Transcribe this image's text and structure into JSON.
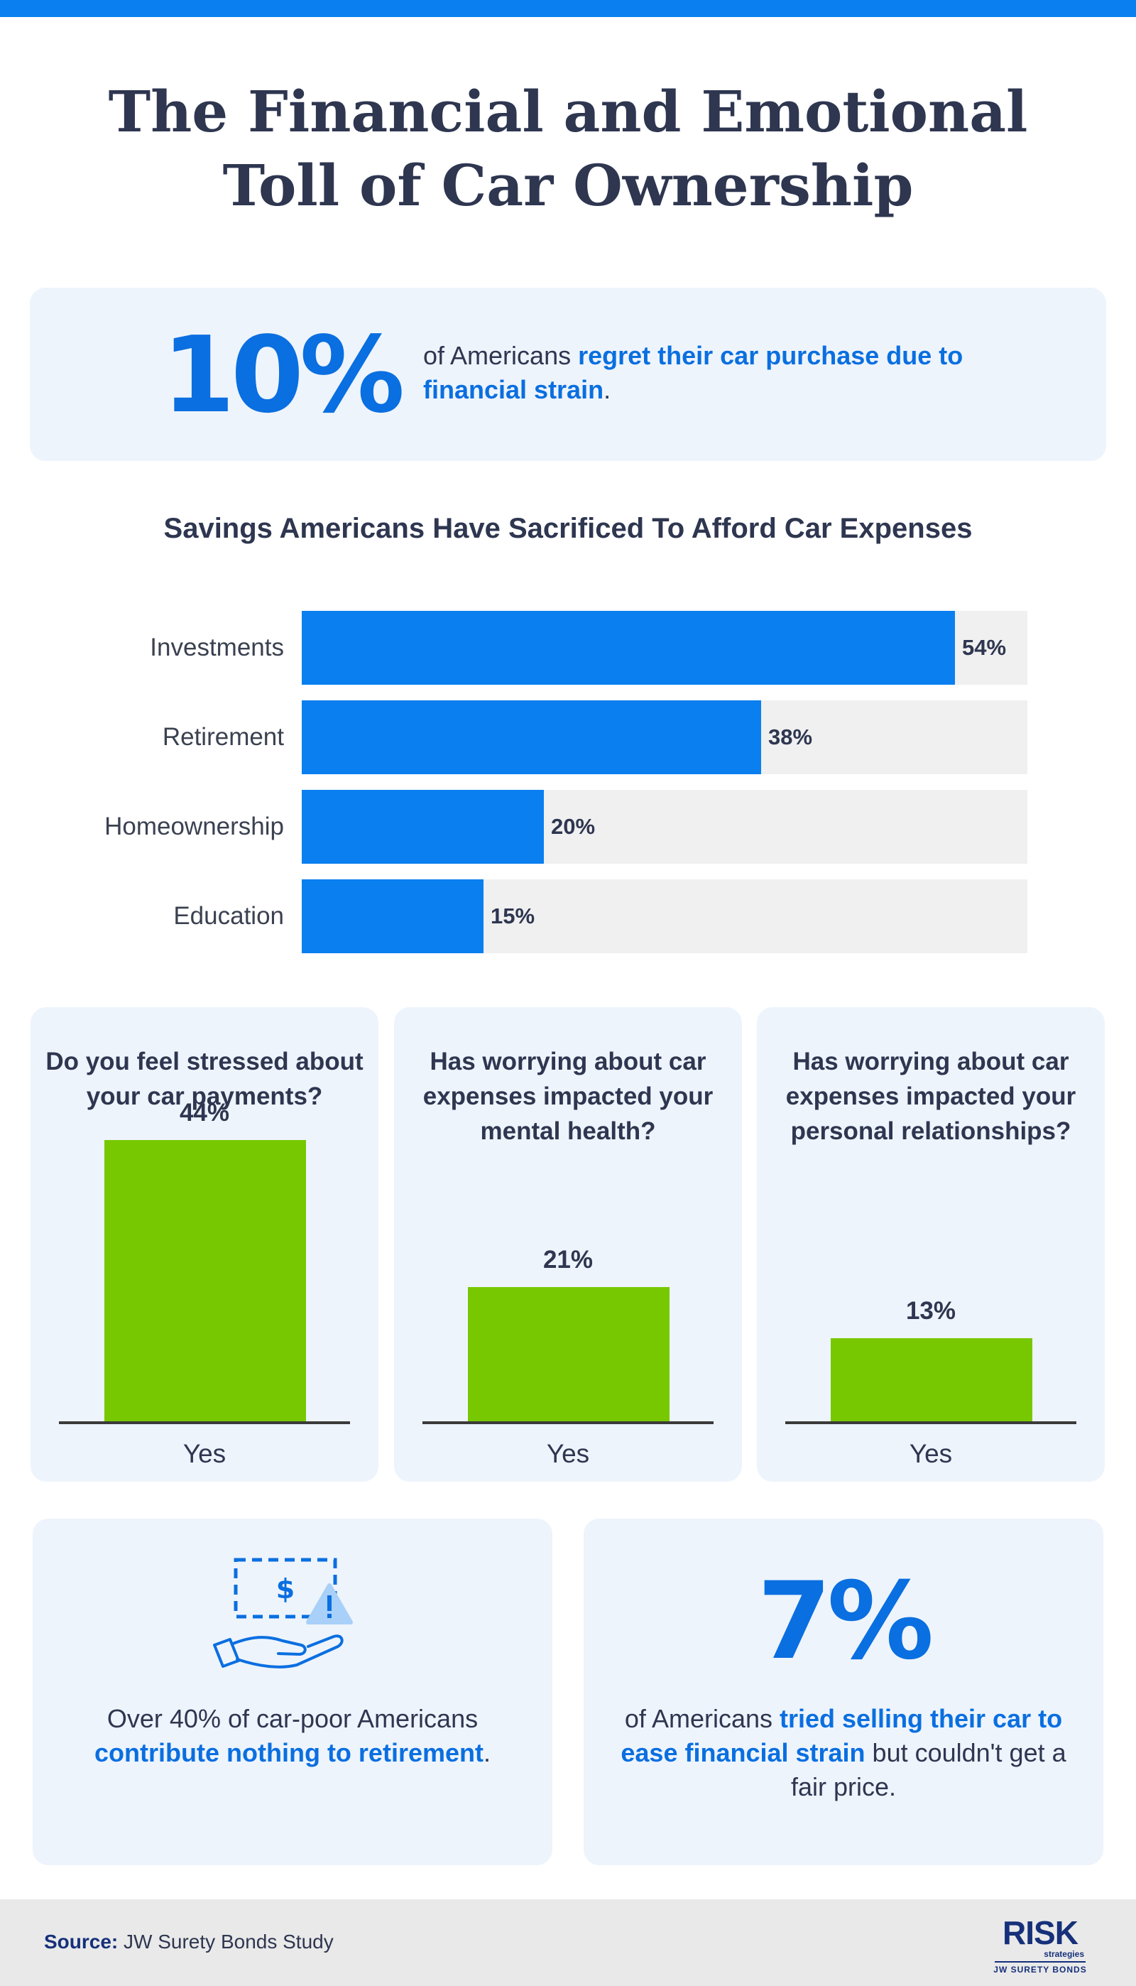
{
  "title": {
    "line1": "The Financial and Emotional",
    "line2": "Toll of Car Ownership"
  },
  "colors": {
    "top_bar": "#0a7ff0",
    "accent_blue": "#0a6fe0",
    "bar_blue": "#0a7ff0",
    "bar_green": "#77c800",
    "card_bg": "#eef4fc",
    "track_gray": "#f0f0f0",
    "text_dark": "#2e3650"
  },
  "stat_top": {
    "number": "10%",
    "text_prefix": "of Americans ",
    "highlight": "regret their car purchase due to financial strain",
    "text_suffix": "."
  },
  "chart_data": [
    {
      "type": "bar",
      "orientation": "horizontal",
      "title": "Savings Americans Have Sacrificed To Afford Car Expenses",
      "categories": [
        "Investments",
        "Retirement",
        "Homeownership",
        "Education"
      ],
      "values": [
        54,
        38,
        20,
        15
      ],
      "value_labels": [
        "54%",
        "38%",
        "20%",
        "15%"
      ],
      "xlim": [
        0,
        60
      ],
      "grid": false
    },
    {
      "type": "bar",
      "title": "Do you feel stressed about your car payments?",
      "categories": [
        "Yes"
      ],
      "values": [
        44
      ],
      "value_labels": [
        "44%"
      ],
      "ylim": [
        0,
        50
      ]
    },
    {
      "type": "bar",
      "title": "Has worrying about car expenses impacted your mental health?",
      "categories": [
        "Yes"
      ],
      "values": [
        21
      ],
      "value_labels": [
        "21%"
      ],
      "ylim": [
        0,
        50
      ]
    },
    {
      "type": "bar",
      "title": "Has worrying about car expenses impacted your personal relationships?",
      "categories": [
        "Yes"
      ],
      "values": [
        13
      ],
      "value_labels": [
        "13%"
      ],
      "ylim": [
        0,
        50
      ]
    }
  ],
  "retirement_card": {
    "icon": "hand-money-warning-icon",
    "text_prefix": "Over 40% of car-poor Americans ",
    "highlight": "contribute nothing to retirement",
    "text_suffix": "."
  },
  "stat_bottom": {
    "number": "7%",
    "text_prefix": "of Americans ",
    "highlight": "tried selling their car to ease financial strain",
    "text_suffix": " but couldn't get a fair price."
  },
  "footer": {
    "source_label": "Source:",
    "source_text": " JW Surety Bonds Study",
    "logo_main": "RISK",
    "logo_sub": "strategies",
    "logo_brand": "JW SURETY BONDS"
  }
}
